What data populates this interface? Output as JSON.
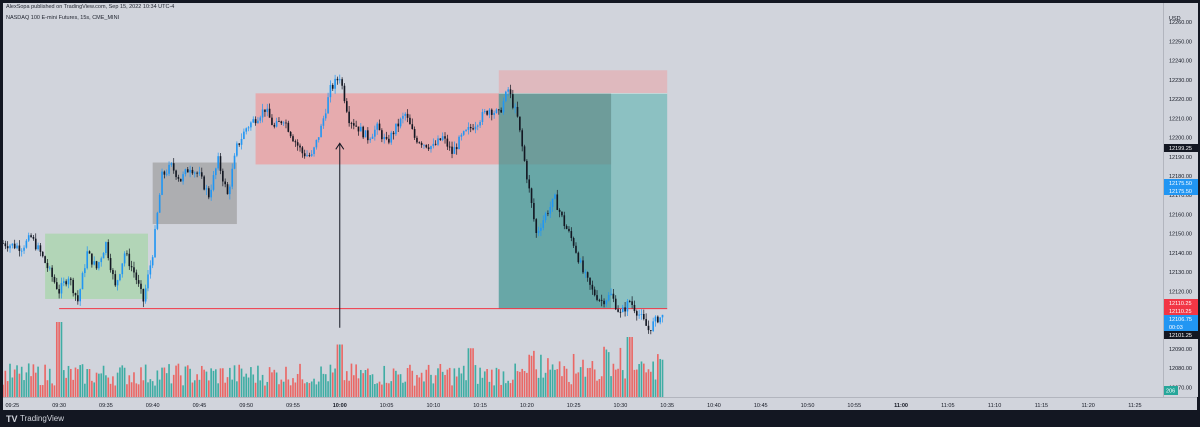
{
  "header": {
    "published": "AlexSopa published on TradingView.com, Sep 15, 2022 10:34 UTC-4",
    "symbol": "NASDAQ 100 E-mini Futures, 15s, CME_MINI"
  },
  "footer": {
    "brand": "TradingView",
    "logo": "TV"
  },
  "price_scale": {
    "currency": "USD",
    "ticks": [
      "12260.00",
      "12250.00",
      "12240.00",
      "12230.00",
      "12220.00",
      "12210.00",
      "12200.00",
      "12190.00",
      "12180.00",
      "12170.00",
      "12160.00",
      "12150.00",
      "12140.00",
      "12130.00",
      "12120.00",
      "12110.00",
      "12100.00",
      "12090.00",
      "12080.00",
      "12070.00"
    ],
    "badges": [
      {
        "text": "12199.25",
        "color": "#131722"
      },
      {
        "text": "12175.50",
        "color": "#2196f3"
      },
      {
        "text": "12175.50",
        "color": "#2196f3"
      },
      {
        "text": "12110.25",
        "color": "#f23645"
      },
      {
        "text": "12110.25",
        "color": "#f23645"
      },
      {
        "text": "12106.75",
        "color": "#2196f3"
      },
      {
        "text": "00:03",
        "color": "#2196f3"
      },
      {
        "text": "12101.25",
        "color": "#131722"
      }
    ],
    "volume_badge": "206"
  },
  "time_scale": {
    "labels": [
      "09:25",
      "09:30",
      "09:35",
      "09:40",
      "09:45",
      "09:50",
      "09:55",
      "10:00",
      "10:05",
      "10:10",
      "10:15",
      "10:20",
      "10:25",
      "10:30",
      "10:35",
      "10:40",
      "10:45",
      "10:50",
      "10:55",
      "11:00",
      "11:05",
      "11:10",
      "11:15",
      "11:20",
      "11:25"
    ],
    "bold": [
      "10:00",
      "11:00"
    ]
  },
  "colors": {
    "background": "#d1d4dc",
    "up": "#2196f3",
    "down": "#131722",
    "vol_up": "#26a69a",
    "vol_down": "#ef5350",
    "zone_green": "#a5d6a7",
    "zone_gray": "#9e9e9e",
    "zone_red": "#ef9a9a",
    "target_teal": "#26a69a",
    "stop_red": "#ef9a9a",
    "level_line": "#f23645"
  },
  "chart_data": {
    "type": "candlestick",
    "timeframe": "15s",
    "ylim": [
      12065,
      12270
    ],
    "x_time_range": [
      "09:24:00",
      "11:28:00"
    ],
    "price_path": [
      [
        "09:24:00",
        12145
      ],
      [
        "09:26:00",
        12143
      ],
      [
        "09:27:00",
        12148
      ],
      [
        "09:28:00",
        12140
      ],
      [
        "09:29:00",
        12130
      ],
      [
        "09:30:00",
        12120
      ],
      [
        "09:31:00",
        12128
      ],
      [
        "09:32:00",
        12115
      ],
      [
        "09:33:00",
        12140
      ],
      [
        "09:34:00",
        12132
      ],
      [
        "09:35:00",
        12145
      ],
      [
        "09:36:00",
        12122
      ],
      [
        "09:37:00",
        12140
      ],
      [
        "09:38:00",
        12130
      ],
      [
        "09:39:00",
        12115
      ],
      [
        "09:40:00",
        12140
      ],
      [
        "09:41:00",
        12180
      ],
      [
        "09:42:00",
        12185
      ],
      [
        "09:43:00",
        12178
      ],
      [
        "09:44:00",
        12185
      ],
      [
        "09:45:00",
        12180
      ],
      [
        "09:46:00",
        12170
      ],
      [
        "09:47:00",
        12188
      ],
      [
        "09:48:00",
        12170
      ],
      [
        "09:49:00",
        12195
      ],
      [
        "09:50:00",
        12205
      ],
      [
        "09:51:00",
        12210
      ],
      [
        "09:52:00",
        12215
      ],
      [
        "09:53:00",
        12205
      ],
      [
        "09:54:00",
        12210
      ],
      [
        "09:55:00",
        12200
      ],
      [
        "09:56:00",
        12192
      ],
      [
        "09:57:00",
        12190
      ],
      [
        "09:58:00",
        12205
      ],
      [
        "09:59:00",
        12225
      ],
      [
        "10:00:00",
        12232
      ],
      [
        "10:01:00",
        12210
      ],
      [
        "10:02:00",
        12205
      ],
      [
        "10:03:00",
        12200
      ],
      [
        "10:04:00",
        12205
      ],
      [
        "10:05:00",
        12197
      ],
      [
        "10:06:00",
        12205
      ],
      [
        "10:07:00",
        12212
      ],
      [
        "10:08:00",
        12200
      ],
      [
        "10:09:00",
        12197
      ],
      [
        "10:10:00",
        12195
      ],
      [
        "10:11:00",
        12200
      ],
      [
        "10:12:00",
        12192
      ],
      [
        "10:13:00",
        12200
      ],
      [
        "10:14:00",
        12205
      ],
      [
        "10:15:00",
        12210
      ],
      [
        "10:16:00",
        12215
      ],
      [
        "10:17:00",
        12212
      ],
      [
        "10:18:00",
        12225
      ],
      [
        "10:19:00",
        12210
      ],
      [
        "10:20:00",
        12180
      ],
      [
        "10:21:00",
        12150
      ],
      [
        "10:22:00",
        12160
      ],
      [
        "10:23:00",
        12168
      ],
      [
        "10:24:00",
        12155
      ],
      [
        "10:25:00",
        12145
      ],
      [
        "10:26:00",
        12130
      ],
      [
        "10:27:00",
        12120
      ],
      [
        "10:28:00",
        12115
      ],
      [
        "10:29:00",
        12118
      ],
      [
        "10:30:00",
        12108
      ],
      [
        "10:31:00",
        12115
      ],
      [
        "10:32:00",
        12108
      ],
      [
        "10:33:00",
        12100
      ],
      [
        "10:34:00",
        12106
      ],
      [
        "10:34:30",
        12106.75
      ]
    ],
    "zones": [
      {
        "name": "green-range",
        "x": [
          "09:28:30",
          "09:39:30"
        ],
        "y": [
          12116,
          12150
        ]
      },
      {
        "name": "gray-range",
        "x": [
          "09:40:00",
          "09:49:00"
        ],
        "y": [
          12155,
          12187
        ]
      },
      {
        "name": "red-range",
        "x": [
          "09:51:00",
          "10:29:00"
        ],
        "y": [
          12186,
          12223
        ]
      }
    ],
    "position": {
      "x": [
        "10:17:00",
        "10:35:00"
      ],
      "entry": 12223,
      "stop": 12235,
      "target": 12111,
      "shaded_until": "10:29:00"
    },
    "level": {
      "price": 12111,
      "x": [
        "09:30:00",
        "10:35:00"
      ]
    },
    "arrow": {
      "time": "10:00:00",
      "from": 12101,
      "to": 12197
    },
    "volume_max": 100
  }
}
